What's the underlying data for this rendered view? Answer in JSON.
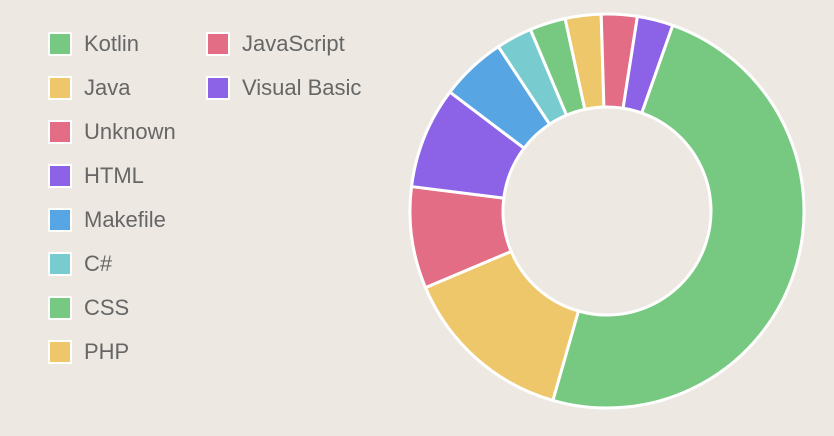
{
  "chart_data": {
    "type": "pie",
    "variant": "donut",
    "legend_position": "left",
    "categories": [
      "Kotlin",
      "Java",
      "Unknown",
      "HTML",
      "Makefile",
      "C#",
      "CSS",
      "PHP",
      "JavaScript",
      "Visual Basic"
    ],
    "values": [
      50.0,
      14.5,
      8.5,
      8.5,
      5.5,
      3.0,
      3.0,
      3.0,
      3.0,
      3.0
    ],
    "colors": [
      "#77c982",
      "#eec76a",
      "#e36d84",
      "#8c62e6",
      "#58a5e3",
      "#78cbcf",
      "#77c982",
      "#eec76a",
      "#e36d84",
      "#8c62e6"
    ],
    "slice_border_color": "#ffffff"
  }
}
